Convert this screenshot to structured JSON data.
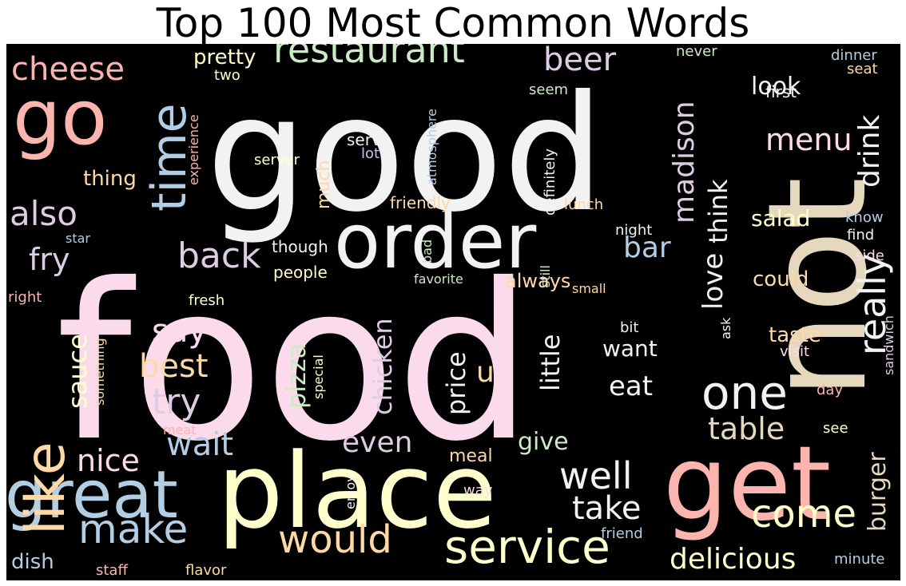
{
  "title": "Top 100 Most Common Words",
  "palette": {
    "pink": "#fbdaec",
    "white": "#f2f2f2",
    "beige": "#e5d8bd",
    "salmon": "#fbb4ae",
    "blue": "#b3cde3",
    "green": "#ccebc5",
    "lavender": "#decbe4",
    "yellow": "#ffffcc",
    "peach": "#fed9a6",
    "background": "#000000"
  },
  "words": [
    {
      "text": "food",
      "color": "#fbdaec"
    },
    {
      "text": "good",
      "color": "#f2f2f2"
    },
    {
      "text": "not",
      "color": "#e5d8bd"
    },
    {
      "text": "place",
      "color": "#ffffcc"
    },
    {
      "text": "get",
      "color": "#fbb4ae"
    },
    {
      "text": "order",
      "color": "#f2f2f2"
    },
    {
      "text": "go",
      "color": "#fbb4ae"
    },
    {
      "text": "great",
      "color": "#b3cde3"
    },
    {
      "text": "like",
      "color": "#fed9a6"
    },
    {
      "text": "time",
      "color": "#b3cde3"
    },
    {
      "text": "one",
      "color": "#f2f2f2"
    },
    {
      "text": "service",
      "color": "#ffffcc"
    },
    {
      "text": "restaurant",
      "color": "#ccebc5"
    },
    {
      "text": "would",
      "color": "#fed9a6"
    },
    {
      "text": "come",
      "color": "#ffffcc"
    },
    {
      "text": "really",
      "color": "#f2f2f2"
    },
    {
      "text": "make",
      "color": "#b3cde3"
    },
    {
      "text": "well",
      "color": "#f2f2f2"
    },
    {
      "text": "cheese",
      "color": "#fbb4ae"
    },
    {
      "text": "back",
      "color": "#decbe4"
    },
    {
      "text": "try",
      "color": "#decbe4"
    },
    {
      "text": "beer",
      "color": "#decbe4"
    },
    {
      "text": "also",
      "color": "#decbe4"
    },
    {
      "text": "madison",
      "color": "#decbe4"
    },
    {
      "text": "menu",
      "color": "#fbdaec"
    },
    {
      "text": "drink",
      "color": "#f2f2f2"
    },
    {
      "text": "take",
      "color": "#f2f2f2"
    },
    {
      "text": "delicious",
      "color": "#ffffcc"
    },
    {
      "text": "wait",
      "color": "#b3cde3"
    },
    {
      "text": "table",
      "color": "#e5d8bd"
    },
    {
      "text": "best",
      "color": "#fed9a6"
    },
    {
      "text": "say",
      "color": "#fbdaec"
    },
    {
      "text": "even",
      "color": "#decbe4"
    },
    {
      "text": "love",
      "color": "#f2f2f2"
    },
    {
      "text": "think",
      "color": "#f2f2f2"
    },
    {
      "text": "bar",
      "color": "#b3cde3"
    },
    {
      "text": "fry",
      "color": "#decbe4"
    },
    {
      "text": "nice",
      "color": "#fbdaec"
    },
    {
      "text": "pizza",
      "color": "#ccebc5"
    },
    {
      "text": "chicken",
      "color": "#decbe4"
    },
    {
      "text": "price",
      "color": "#f2f2f2"
    },
    {
      "text": "little",
      "color": "#f2f2f2"
    },
    {
      "text": "sauce",
      "color": "#ffffcc"
    },
    {
      "text": "burger",
      "color": "#e5d8bd"
    },
    {
      "text": "look",
      "color": "#f2f2f2"
    },
    {
      "text": "u",
      "color": "#fed9a6"
    },
    {
      "text": "eat",
      "color": "#f2f2f2"
    },
    {
      "text": "want",
      "color": "#f2f2f2"
    },
    {
      "text": "give",
      "color": "#ccebc5"
    },
    {
      "text": "salad",
      "color": "#ffffcc"
    },
    {
      "text": "could",
      "color": "#fed9a6"
    },
    {
      "text": "taste",
      "color": "#fed9a6"
    },
    {
      "text": "pretty",
      "color": "#ffffcc"
    },
    {
      "text": "always",
      "color": "#fed9a6"
    },
    {
      "text": "much",
      "color": "#fed9a6"
    },
    {
      "text": "thing",
      "color": "#fed9a6"
    },
    {
      "text": "dish",
      "color": "#b3cde3"
    },
    {
      "text": "meal",
      "color": "#fed9a6"
    },
    {
      "text": "two",
      "color": "#ffffcc"
    },
    {
      "text": "seem",
      "color": "#ccebc5"
    },
    {
      "text": "never",
      "color": "#ccebc5"
    },
    {
      "text": "first",
      "color": "#f2f2f2"
    },
    {
      "text": "dinner",
      "color": "#b3cde3"
    },
    {
      "text": "seat",
      "color": "#fed9a6"
    },
    {
      "text": "serve",
      "color": "#f2f2f2"
    },
    {
      "text": "lot",
      "color": "#b3cde3"
    },
    {
      "text": "atmosphere",
      "color": "#b3cde3"
    },
    {
      "text": "experience",
      "color": "#fbb4ae"
    },
    {
      "text": "server",
      "color": "#ffffcc"
    },
    {
      "text": "friendly",
      "color": "#fed9a6"
    },
    {
      "text": "definitely",
      "color": "#f2f2f2"
    },
    {
      "text": "lunch",
      "color": "#fed9a6"
    },
    {
      "text": "night",
      "color": "#f2f2f2"
    },
    {
      "text": "still",
      "color": "#ccebc5"
    },
    {
      "text": "bad",
      "color": "#ccebc5"
    },
    {
      "text": "favorite",
      "color": "#ccebc5"
    },
    {
      "text": "small",
      "color": "#fed9a6"
    },
    {
      "text": "people",
      "color": "#ffffcc"
    },
    {
      "text": "though",
      "color": "#f2f2f2"
    },
    {
      "text": "fresh",
      "color": "#ffffcc"
    },
    {
      "text": "right",
      "color": "#fbb4ae"
    },
    {
      "text": "star",
      "color": "#b3cde3"
    },
    {
      "text": "know",
      "color": "#b3cde3"
    },
    {
      "text": "find",
      "color": "#f2f2f2"
    },
    {
      "text": "side",
      "color": "#fbdaec"
    },
    {
      "text": "ask",
      "color": "#f2f2f2"
    },
    {
      "text": "bit",
      "color": "#f2f2f2"
    },
    {
      "text": "visit",
      "color": "#fbdaec"
    },
    {
      "text": "sandwich",
      "color": "#decbe4"
    },
    {
      "text": "something",
      "color": "#fed9a6"
    },
    {
      "text": "special",
      "color": "#ffffcc"
    },
    {
      "text": "meat",
      "color": "#fbb4ae"
    },
    {
      "text": "day",
      "color": "#fbb4ae"
    },
    {
      "text": "see",
      "color": "#ffffcc"
    },
    {
      "text": "enjoy",
      "color": "#f2f2f2"
    },
    {
      "text": "way",
      "color": "#fbdaec"
    },
    {
      "text": "friend",
      "color": "#b3cde3"
    },
    {
      "text": "minute",
      "color": "#b3cde3"
    },
    {
      "text": "staff",
      "color": "#fbb4ae"
    },
    {
      "text": "flavor",
      "color": "#fed9a6"
    }
  ]
}
